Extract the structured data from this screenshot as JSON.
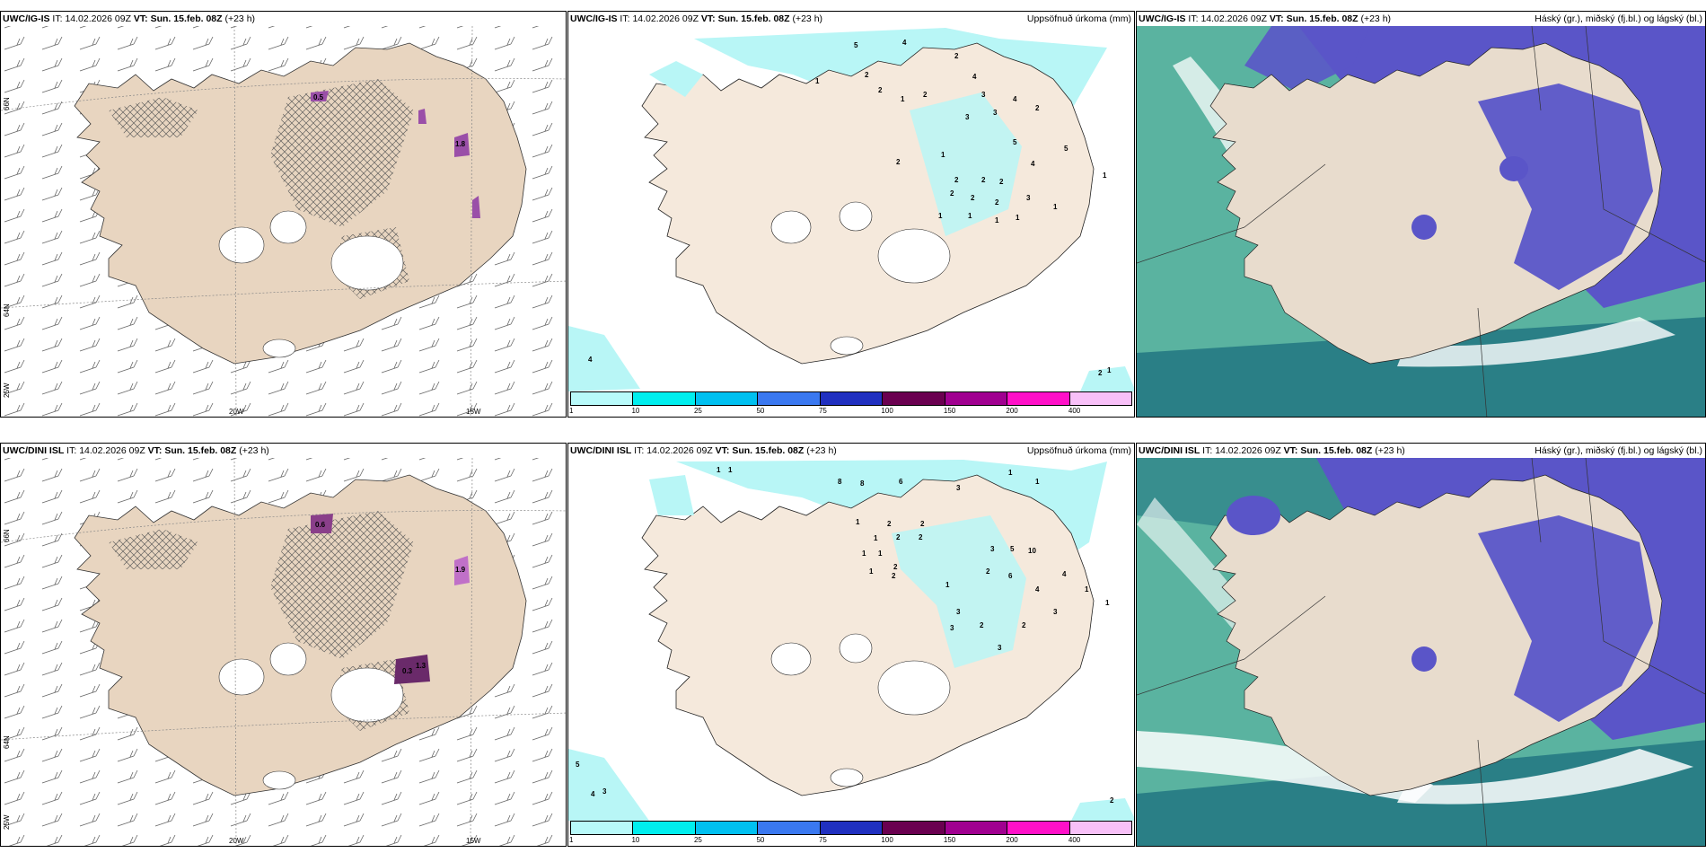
{
  "rows": [
    {
      "model": "UWC/IG-IS",
      "it_label": "IT:",
      "it": "14.02.2026 09Z",
      "vt_label": "VT:",
      "vt": "Sun. 15.feb. 08Z",
      "lead": "(+23 h)"
    },
    {
      "model": "UWC/DINI ISL",
      "it_label": "IT:",
      "it": "14.02.2026 09Z",
      "vt_label": "VT:",
      "vt": "Sun. 15.feb. 08Z",
      "lead": "(+23 h)"
    }
  ],
  "precip_title": "Uppsöfnuð úrkoma (mm)",
  "cloud_title": "Háský (gr.), miðský (fj.bl.) og lágský (bl.)",
  "axes": {
    "lon": [
      "20W",
      "15W"
    ],
    "lat": [
      "66N",
      "64N",
      "25W"
    ]
  },
  "precip_legend": {
    "colors": [
      "#b8fafa",
      "#00eeee",
      "#00c0f0",
      "#3a78f0",
      "#2030c0",
      "#6a0050",
      "#a00090",
      "#ff10c8",
      "#f8c0f8"
    ],
    "ticks": [
      "1",
      "10",
      "25",
      "50",
      "75",
      "100",
      "150",
      "200",
      "400"
    ]
  },
  "snow_labels": {
    "top": [
      "0.5",
      "1.8"
    ],
    "bottom": [
      "0.6",
      "1.9",
      "0.3",
      "1.3"
    ]
  },
  "precip_values": {
    "top": [
      "5",
      "4",
      "2",
      "4",
      "1",
      "2",
      "2",
      "2",
      "1",
      "3",
      "4",
      "3",
      "2",
      "3",
      "5",
      "5",
      "4",
      "2",
      "1",
      "2",
      "2",
      "2",
      "2",
      "2",
      "2",
      "3",
      "1",
      "1",
      "1",
      "1",
      "1",
      "1",
      "4",
      "1",
      "2"
    ],
    "bottom": [
      "1",
      "1",
      "8",
      "8",
      "6",
      "3",
      "1",
      "1",
      "1",
      "2",
      "2",
      "1",
      "2",
      "2",
      "1",
      "1",
      "2",
      "2",
      "3",
      "5",
      "1",
      "1",
      "3",
      "2",
      "6",
      "10",
      "4",
      "4",
      "2",
      "2",
      "3",
      "3",
      "3",
      "1",
      "1",
      "5",
      "4",
      "3",
      "2"
    ]
  },
  "colors": {
    "land": "#f5e9dc",
    "land_wind_map": "#e8d5c0",
    "precip_light": "#b8f6f6",
    "cloud_high": "#2a7f86",
    "cloud_mid": "#5ab3a0",
    "cloud_low": "#5a55c8",
    "snow_purple": "#9a4fa8"
  }
}
